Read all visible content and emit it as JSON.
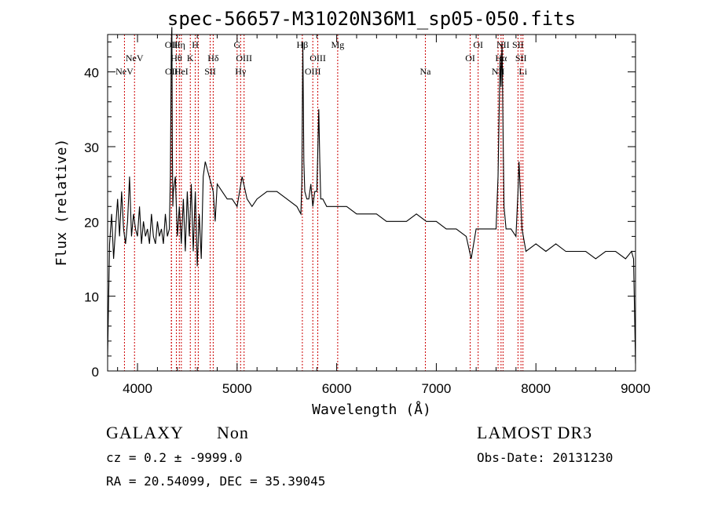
{
  "chart_data": {
    "type": "line",
    "title": "spec-56657-M31020N36M1_sp05-050.fits",
    "xlabel": "Wavelength (Å)",
    "ylabel": "Flux (relative)",
    "xlim": [
      3700,
      9000
    ],
    "ylim": [
      0,
      45
    ],
    "xticks": [
      4000,
      5000,
      6000,
      7000,
      8000,
      9000
    ],
    "yticks": [
      0,
      10,
      20,
      30,
      40
    ],
    "grid": false,
    "series": [
      {
        "name": "spectrum",
        "x": [
          3700,
          3720,
          3740,
          3760,
          3780,
          3800,
          3820,
          3840,
          3860,
          3880,
          3900,
          3920,
          3940,
          3960,
          3980,
          4000,
          4020,
          4040,
          4060,
          4080,
          4100,
          4120,
          4140,
          4160,
          4180,
          4200,
          4220,
          4240,
          4260,
          4280,
          4300,
          4320,
          4330,
          4340,
          4345,
          4350,
          4355,
          4360,
          4380,
          4400,
          4420,
          4440,
          4460,
          4480,
          4500,
          4520,
          4540,
          4560,
          4580,
          4600,
          4620,
          4640,
          4660,
          4680,
          4700,
          4720,
          4740,
          4760,
          4780,
          4800,
          4850,
          4900,
          4950,
          5000,
          5050,
          5100,
          5150,
          5200,
          5300,
          5400,
          5500,
          5600,
          5640,
          5650,
          5660,
          5670,
          5680,
          5700,
          5720,
          5740,
          5760,
          5780,
          5800,
          5820,
          5830,
          5840,
          5860,
          5900,
          6000,
          6100,
          6200,
          6300,
          6400,
          6500,
          6600,
          6700,
          6800,
          6900,
          7000,
          7100,
          7200,
          7300,
          7350,
          7400,
          7500,
          7600,
          7620,
          7640,
          7650,
          7660,
          7670,
          7680,
          7700,
          7750,
          7800,
          7820,
          7830,
          7840,
          7860,
          7900,
          8000,
          8100,
          8200,
          8300,
          8400,
          8500,
          8600,
          8700,
          8800,
          8900,
          8960,
          8980,
          9000
        ],
        "values": [
          2,
          17,
          21,
          15,
          19,
          23,
          18,
          24,
          19,
          17,
          20,
          26,
          18,
          21,
          19,
          18,
          22,
          17,
          20,
          18,
          19,
          17,
          21,
          18,
          17,
          20,
          18,
          19,
          17,
          21,
          18,
          19,
          26,
          44,
          46,
          30,
          22,
          24,
          26,
          18,
          22,
          17,
          23,
          16,
          24,
          18,
          25,
          16,
          24,
          14,
          21,
          15,
          26,
          28,
          27,
          26,
          25,
          24,
          20,
          25,
          24,
          23,
          23,
          22,
          26,
          23,
          22,
          23,
          24,
          24,
          23,
          22,
          21,
          25,
          44,
          28,
          24,
          23,
          23,
          25,
          22,
          24,
          24,
          35,
          28,
          23,
          23,
          22,
          22,
          22,
          21,
          21,
          21,
          20,
          20,
          20,
          21,
          20,
          20,
          19,
          19,
          18,
          15,
          19,
          19,
          19,
          26,
          42,
          38,
          44,
          32,
          22,
          19,
          19,
          18,
          24,
          28,
          25,
          19,
          16,
          17,
          16,
          17,
          16,
          16,
          16,
          15,
          16,
          16,
          15,
          16,
          15,
          1
        ]
      }
    ],
    "lines": [
      {
        "wave": 3869,
        "label": "NeV",
        "row": 3
      },
      {
        "wave": 3970,
        "label": "NeV",
        "row": 2
      },
      {
        "wave": 4340,
        "label": "OII",
        "row": 1
      },
      {
        "wave": 4341,
        "label": "OII",
        "row": 3
      },
      {
        "wave": 4390,
        "label": "Hθ",
        "row": 2
      },
      {
        "wave": 4420,
        "label": "Hη",
        "row": 1
      },
      {
        "wave": 4440,
        "label": "HeI",
        "row": 3
      },
      {
        "wave": 4530,
        "label": "K",
        "row": 2
      },
      {
        "wave": 4580,
        "label": "H",
        "row": 1
      },
      {
        "wave": 4610,
        "label": "",
        "row": 0
      },
      {
        "wave": 4730,
        "label": "SII",
        "row": 3
      },
      {
        "wave": 4760,
        "label": "Hδ",
        "row": 2
      },
      {
        "wave": 5000,
        "label": "G",
        "row": 1
      },
      {
        "wave": 5035,
        "label": "Hγ",
        "row": 3
      },
      {
        "wave": 5070,
        "label": "OIII",
        "row": 2
      },
      {
        "wave": 5655,
        "label": "Hβ",
        "row": 1
      },
      {
        "wave": 5760,
        "label": "OIII",
        "row": 3
      },
      {
        "wave": 5810,
        "label": "OIII",
        "row": 2
      },
      {
        "wave": 6010,
        "label": "Mg",
        "row": 1
      },
      {
        "wave": 6890,
        "label": "Na",
        "row": 3
      },
      {
        "wave": 7340,
        "label": "OI",
        "row": 2
      },
      {
        "wave": 7420,
        "label": "OI",
        "row": 1
      },
      {
        "wave": 7620,
        "label": "NII",
        "row": 3
      },
      {
        "wave": 7650,
        "label": "Hα",
        "row": 2
      },
      {
        "wave": 7670,
        "label": "NII",
        "row": 1
      },
      {
        "wave": 7820,
        "label": "SII",
        "row": 1
      },
      {
        "wave": 7850,
        "label": "SII",
        "row": 2
      },
      {
        "wave": 7870,
        "label": "Li",
        "row": 3
      }
    ]
  },
  "info": {
    "class": "GALAXY",
    "subclass": "Non",
    "survey": "LAMOST DR3",
    "cz": "cz = 0.2 ± -9999.0",
    "obs_date": "Obs-Date: 20131230",
    "coords": "RA =  20.54099, DEC =  35.39045"
  }
}
